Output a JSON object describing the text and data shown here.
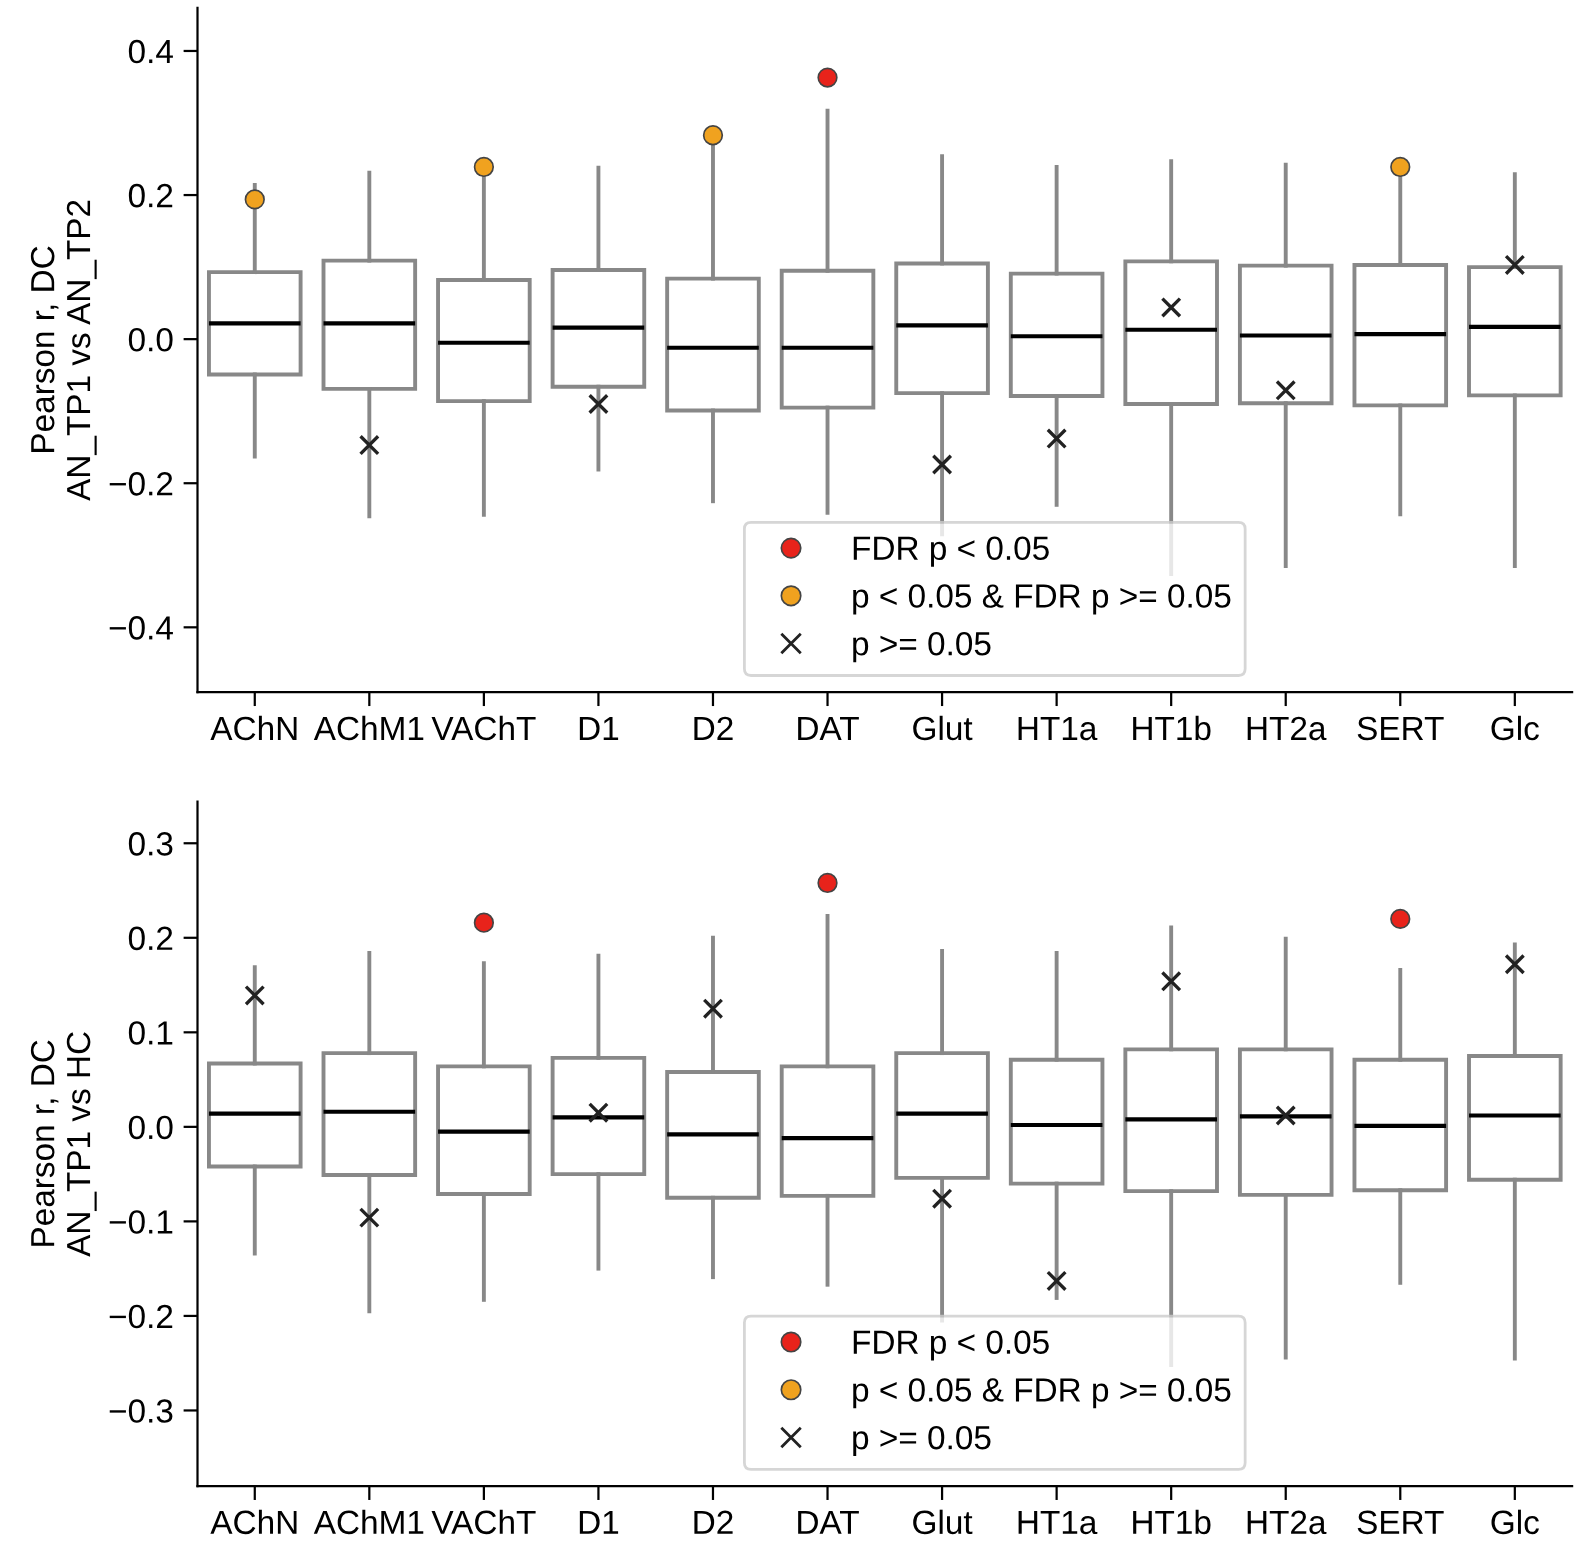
{
  "chart_data": [
    {
      "type": "box",
      "ylabel": "Pearson r, DC\nAN_TP1 vs AN_TP2",
      "categories": [
        "AChN",
        "AChM1",
        "VAChT",
        "D1",
        "D2",
        "DAT",
        "Glut",
        "HT1a",
        "HT1b",
        "HT2a",
        "SERT",
        "Glc"
      ],
      "color": "#888888",
      "boxes": [
        {
          "low": -0.163,
          "q1": -0.049,
          "median": 0.022,
          "q3": 0.093,
          "high": 0.214
        },
        {
          "low": -0.246,
          "q1": -0.069,
          "median": 0.022,
          "q3": 0.109,
          "high": 0.231
        },
        {
          "low": -0.244,
          "q1": -0.086,
          "median": -0.005,
          "q3": 0.082,
          "high": 0.235
        },
        {
          "low": -0.181,
          "q1": -0.066,
          "median": 0.016,
          "q3": 0.096,
          "high": 0.238
        },
        {
          "low": -0.225,
          "q1": -0.099,
          "median": -0.012,
          "q3": 0.084,
          "high": 0.278
        },
        {
          "low": -0.241,
          "q1": -0.095,
          "median": -0.012,
          "q3": 0.095,
          "high": 0.317
        },
        {
          "low": -0.271,
          "q1": -0.075,
          "median": 0.019,
          "q3": 0.105,
          "high": 0.254
        },
        {
          "low": -0.23,
          "q1": -0.079,
          "median": 0.004,
          "q3": 0.091,
          "high": 0.239
        },
        {
          "low": -0.326,
          "q1": -0.09,
          "median": 0.013,
          "q3": 0.108,
          "high": 0.247
        },
        {
          "low": -0.315,
          "q1": -0.089,
          "median": 0.005,
          "q3": 0.102,
          "high": 0.242
        },
        {
          "low": -0.243,
          "q1": -0.092,
          "median": 0.007,
          "q3": 0.103,
          "high": 0.236
        },
        {
          "low": -0.315,
          "q1": -0.078,
          "median": 0.017,
          "q3": 0.1,
          "high": 0.229
        }
      ],
      "series": [
        {
          "type": "scatter",
          "name": "FDR p < 0.05",
          "color": "#e8231b",
          "marker": "circle",
          "x": [
            "AChN",
            "AChM1",
            "VAChT",
            "D1",
            "D2",
            "DAT",
            "Glut",
            "HT1a",
            "HT1b",
            "HT2a",
            "SERT",
            "Glc"
          ],
          "values": [
            null,
            null,
            null,
            null,
            null,
            0.363,
            null,
            null,
            null,
            null,
            null,
            null
          ]
        },
        {
          "type": "scatter",
          "name": "p < 0.05 & FDR p >= 0.05",
          "color": "#f0a21f",
          "marker": "circle",
          "x": [
            "AChN",
            "AChM1",
            "VAChT",
            "D1",
            "D2",
            "DAT",
            "Glut",
            "HT1a",
            "HT1b",
            "HT2a",
            "SERT",
            "Glc"
          ],
          "values": [
            0.194,
            null,
            0.239,
            null,
            0.283,
            null,
            null,
            null,
            null,
            null,
            0.239,
            null
          ]
        },
        {
          "type": "scatter",
          "name": "p >= 0.05",
          "color": "#222222",
          "marker": "cross",
          "x": [
            "AChN",
            "AChM1",
            "VAChT",
            "D1",
            "D2",
            "DAT",
            "Glut",
            "HT1a",
            "HT1b",
            "HT2a",
            "SERT",
            "Glc"
          ],
          "values": [
            null,
            -0.147,
            null,
            -0.09,
            null,
            null,
            -0.174,
            -0.138,
            0.044,
            -0.071,
            null,
            0.103
          ]
        }
      ],
      "ylim": [
        -0.49,
        0.46
      ],
      "yticks": [
        {
          "value": -0.4,
          "label": "−0.4"
        },
        {
          "value": -0.2,
          "label": "−0.2"
        },
        {
          "value": 0,
          "label": "0.0"
        },
        0.2,
        0.4
      ],
      "legend": "bottom",
      "grid": false
    },
    {
      "type": "box",
      "ylabel": "Pearson r, DC\nAN_TP1 vs HC",
      "categories": [
        "AChN",
        "AChM1",
        "VAChT",
        "D1",
        "D2",
        "DAT",
        "Glut",
        "HT1a",
        "HT1b",
        "HT2a",
        "SERT",
        "Glc"
      ],
      "color": "#888888",
      "boxes": [
        {
          "low": -0.134,
          "q1": -0.042,
          "median": 0.014,
          "q3": 0.067,
          "high": 0.169
        },
        {
          "low": -0.195,
          "q1": -0.051,
          "median": 0.016,
          "q3": 0.078,
          "high": 0.184
        },
        {
          "low": -0.183,
          "q1": -0.071,
          "median": -0.005,
          "q3": 0.064,
          "high": 0.173
        },
        {
          "low": -0.15,
          "q1": -0.05,
          "median": 0.01,
          "q3": 0.073,
          "high": 0.181
        },
        {
          "low": -0.159,
          "q1": -0.075,
          "median": -0.008,
          "q3": 0.058,
          "high": 0.2
        },
        {
          "low": -0.167,
          "q1": -0.073,
          "median": -0.012,
          "q3": 0.064,
          "high": 0.223
        },
        {
          "low": -0.205,
          "q1": -0.054,
          "median": 0.014,
          "q3": 0.078,
          "high": 0.186
        },
        {
          "low": -0.181,
          "q1": -0.06,
          "median": 0.002,
          "q3": 0.071,
          "high": 0.184
        },
        {
          "low": -0.252,
          "q1": -0.068,
          "median": 0.008,
          "q3": 0.082,
          "high": 0.211
        },
        {
          "low": -0.244,
          "q1": -0.072,
          "median": 0.011,
          "q3": 0.082,
          "high": 0.199
        },
        {
          "low": -0.165,
          "q1": -0.067,
          "median": 0.001,
          "q3": 0.071,
          "high": 0.166
        },
        {
          "low": -0.245,
          "q1": -0.056,
          "median": 0.012,
          "q3": 0.075,
          "high": 0.193
        }
      ],
      "series": [
        {
          "type": "scatter",
          "name": "FDR p < 0.05",
          "color": "#e8231b",
          "marker": "circle",
          "x": [
            "AChN",
            "AChM1",
            "VAChT",
            "D1",
            "D2",
            "DAT",
            "Glut",
            "HT1a",
            "HT1b",
            "HT2a",
            "SERT",
            "Glc"
          ],
          "values": [
            null,
            null,
            0.216,
            null,
            null,
            0.258,
            null,
            null,
            null,
            null,
            0.22,
            null
          ]
        },
        {
          "type": "scatter",
          "name": "p < 0.05 & FDR p >= 0.05",
          "color": "#f0a21f",
          "marker": "circle",
          "x": [
            "AChN",
            "AChM1",
            "VAChT",
            "D1",
            "D2",
            "DAT",
            "Glut",
            "HT1a",
            "HT1b",
            "HT2a",
            "SERT",
            "Glc"
          ],
          "values": [
            null,
            null,
            null,
            null,
            null,
            null,
            null,
            null,
            null,
            null,
            null,
            null
          ]
        },
        {
          "type": "scatter",
          "name": "p >= 0.05",
          "color": "#222222",
          "marker": "cross",
          "x": [
            "AChN",
            "AChM1",
            "VAChT",
            "D1",
            "D2",
            "DAT",
            "Glut",
            "HT1a",
            "HT1b",
            "HT2a",
            "SERT",
            "Glc"
          ],
          "values": [
            0.139,
            -0.096,
            null,
            0.015,
            0.125,
            null,
            -0.076,
            -0.163,
            0.154,
            0.012,
            null,
            0.172
          ]
        }
      ],
      "ylim": [
        -0.38,
        0.344
      ],
      "yticks": [
        {
          "value": -0.3,
          "label": "−0.3"
        },
        {
          "value": -0.2,
          "label": "−0.2"
        },
        {
          "value": -0.1,
          "label": "−0.1"
        },
        {
          "value": 0,
          "label": "0.0"
        },
        0.1,
        0.2,
        0.3
      ],
      "legend": "bottom",
      "grid": false
    }
  ]
}
